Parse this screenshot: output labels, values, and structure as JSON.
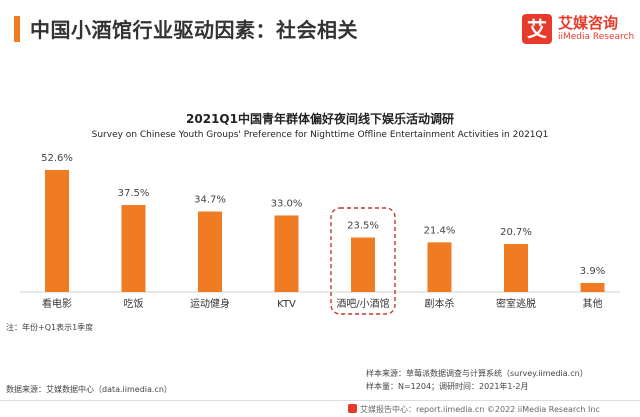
{
  "header": {
    "title": "中国小酒馆行业驱动因素：社会相关",
    "logo_mark": "艾",
    "logo_cn": "艾媒咨询",
    "logo_en": "iiMedia Research"
  },
  "colors": {
    "accent": "#ef7c22",
    "bar": "#ef7c22",
    "highlight_border": "#c0392b",
    "brand": "#e83a2a"
  },
  "chart_data": {
    "type": "bar",
    "title": "2021Q1中国青年群体偏好夜间线下娱乐活动调研",
    "subtitle": "Survey on Chinese Youth Groups' Preference for Nighttime Offline Entertainment Activities in 2021Q1",
    "categories": [
      "看电影",
      "吃饭",
      "运动健身",
      "KTV",
      "酒吧/小酒馆",
      "剧本杀",
      "密室逃脱",
      "其他"
    ],
    "values": [
      52.6,
      37.5,
      34.7,
      33.0,
      23.5,
      21.4,
      20.7,
      3.9
    ],
    "value_labels": [
      "52.6%",
      "37.5%",
      "34.7%",
      "33.0%",
      "23.5%",
      "21.4%",
      "20.7%",
      "3.9%"
    ],
    "highlight_index": 4,
    "ylim": [
      0,
      60
    ],
    "xlabel": "",
    "ylabel": ""
  },
  "notes": {
    "footnote": "注：年份+Q1表示1季度",
    "sample_source": "样本来源：草莓派数据调查与计算系统（survey.iimedia.cn）",
    "sample_size": "样本量：N=1204；调研时间：2021年1-2月",
    "data_source": "数据来源：艾媒数据中心（data.iimedia.cn）"
  },
  "bottom_bar": {
    "text": "艾媒报告中心：report.iimedia.cn ©2022  iiMedia Research Inc"
  }
}
